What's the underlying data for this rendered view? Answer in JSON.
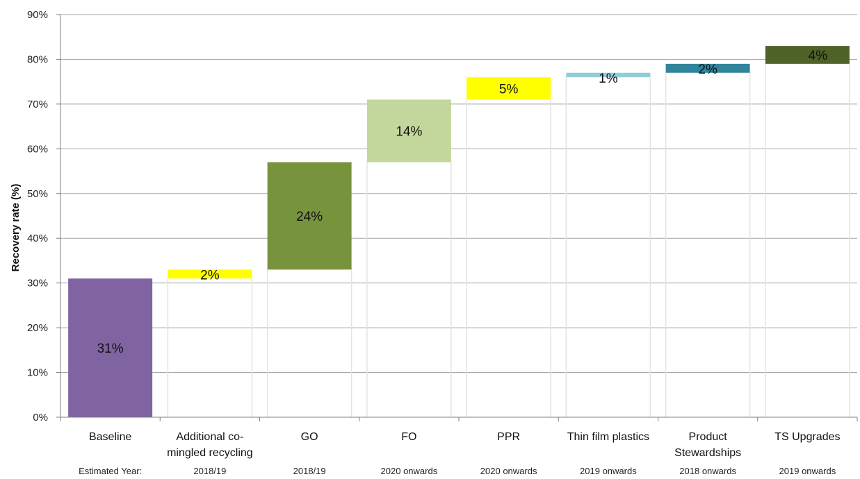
{
  "chart_data": {
    "type": "bar",
    "subtype": "waterfall",
    "ylabel": "Recovery rate (%)",
    "ylim": [
      0,
      90
    ],
    "yticks": [
      "0%",
      "10%",
      "20%",
      "30%",
      "40%",
      "50%",
      "60%",
      "70%",
      "80%",
      "90%"
    ],
    "grid": true,
    "categories": [
      [
        "Baseline"
      ],
      [
        "Additional co-",
        "mingled recycling"
      ],
      [
        "GO"
      ],
      [
        "FO"
      ],
      [
        "PPR"
      ],
      [
        "Thin film plastics"
      ],
      [
        "Product",
        "Stewardships"
      ],
      [
        "TS Upgrades"
      ]
    ],
    "bars": [
      {
        "base": 0,
        "top": 31,
        "label": "31%",
        "color": "#8064a2"
      },
      {
        "base": 31,
        "top": 33,
        "label": "2%",
        "color": "#ffff00"
      },
      {
        "base": 33,
        "top": 57,
        "label": "24%",
        "color": "#77933c"
      },
      {
        "base": 57,
        "top": 71,
        "label": "14%",
        "color": "#c3d69b"
      },
      {
        "base": 71,
        "top": 76,
        "label": "5%",
        "color": "#ffff00"
      },
      {
        "base": 76,
        "top": 77,
        "label": "1%",
        "color": "#92cddc"
      },
      {
        "base": 77,
        "top": 79,
        "label": "2%",
        "color": "#31849b"
      },
      {
        "base": 79,
        "top": 83,
        "label": "4%",
        "color": "#4f6228"
      }
    ],
    "year_row_label": "Estimated Year:",
    "years": [
      "2018/19",
      "2018/19",
      "2020 onwards",
      "2020 onwards",
      "2019 onwards",
      "2018 onwards",
      "2019 onwards"
    ]
  }
}
